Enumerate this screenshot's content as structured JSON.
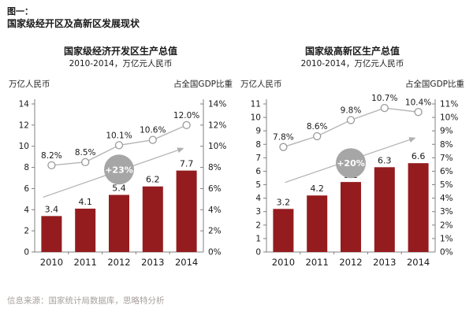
{
  "page": {
    "figure_label": "图一：",
    "figure_title": "国家级经开区及高新区发展现状",
    "source": "信息来源：国家统计局数据库，思略特分析"
  },
  "colors": {
    "bar": "#941c1e",
    "line": "#b5b5b5",
    "marker_fill": "#ffffff",
    "marker_stroke": "#9a9a9a",
    "axis": "#808080",
    "tick_text": "#1a1a1a",
    "value_text": "#1a1a1a",
    "arrow": "#b0b0b0",
    "annotation_circle": "#a6a6a6",
    "annotation_text": "#ffffff"
  },
  "chart_data": [
    {
      "type": "bar",
      "title": "国家级经济开发区生产总值",
      "subtitle": "2010-2014，万亿元人民币",
      "left_axis_label": "万亿人民币",
      "right_axis_label": "占全国GDP比重",
      "categories": [
        "2010",
        "2011",
        "2012",
        "2013",
        "2014"
      ],
      "series": [
        {
          "name": "生产总值",
          "type": "bar",
          "axis": "left",
          "values": [
            3.4,
            4.1,
            5.4,
            6.2,
            7.7
          ],
          "labels": [
            "3.4",
            "4.1",
            "5.4",
            "6.2",
            "7.7"
          ]
        },
        {
          "name": "占全国GDP比重",
          "type": "line",
          "axis": "right",
          "values": [
            8.2,
            8.5,
            10.1,
            10.6,
            12.0
          ],
          "labels": [
            "8.2%",
            "8.5%",
            "10.1%",
            "10.6%",
            "12.0%"
          ]
        }
      ],
      "left_ylim": [
        0,
        14
      ],
      "left_step": 2,
      "right_ylim": [
        0,
        14
      ],
      "right_step": 2,
      "right_suffix": "%",
      "grid": false,
      "annotation": {
        "label": "+23%",
        "at_category": "2012",
        "y_value": 7.8
      },
      "arrow": {
        "from_frac": [
          0.05,
          0.63
        ],
        "to_frac": [
          0.88,
          0.3
        ]
      }
    },
    {
      "type": "bar",
      "title": "国家级高新区生产总值",
      "subtitle": "2010-2014，万亿元人民币",
      "left_axis_label": "万亿人民币",
      "right_axis_label": "占全国GDP比重",
      "categories": [
        "2010",
        "2011",
        "2012",
        "2013",
        "2014"
      ],
      "series": [
        {
          "name": "生产总值",
          "type": "bar",
          "axis": "left",
          "values": [
            3.2,
            4.2,
            5.2,
            6.3,
            6.6
          ],
          "labels": [
            "3.2",
            "4.2",
            "5.2",
            "6.3",
            "6.6"
          ]
        },
        {
          "name": "占全国GDP比重",
          "type": "line",
          "axis": "right",
          "values": [
            7.8,
            8.6,
            9.8,
            10.7,
            10.4
          ],
          "labels": [
            "7.8%",
            "8.6%",
            "9.8%",
            "10.7%",
            "10.4%"
          ]
        }
      ],
      "left_ylim": [
        0,
        11
      ],
      "left_step": 1,
      "right_ylim": [
        0,
        11
      ],
      "right_step": 1,
      "right_suffix": "%",
      "grid": false,
      "annotation": {
        "label": "+20%",
        "at_category": "2012",
        "y_value": 6.6
      },
      "arrow": {
        "from_frac": [
          0.11,
          0.53
        ],
        "to_frac": [
          0.88,
          0.23
        ]
      }
    }
  ]
}
